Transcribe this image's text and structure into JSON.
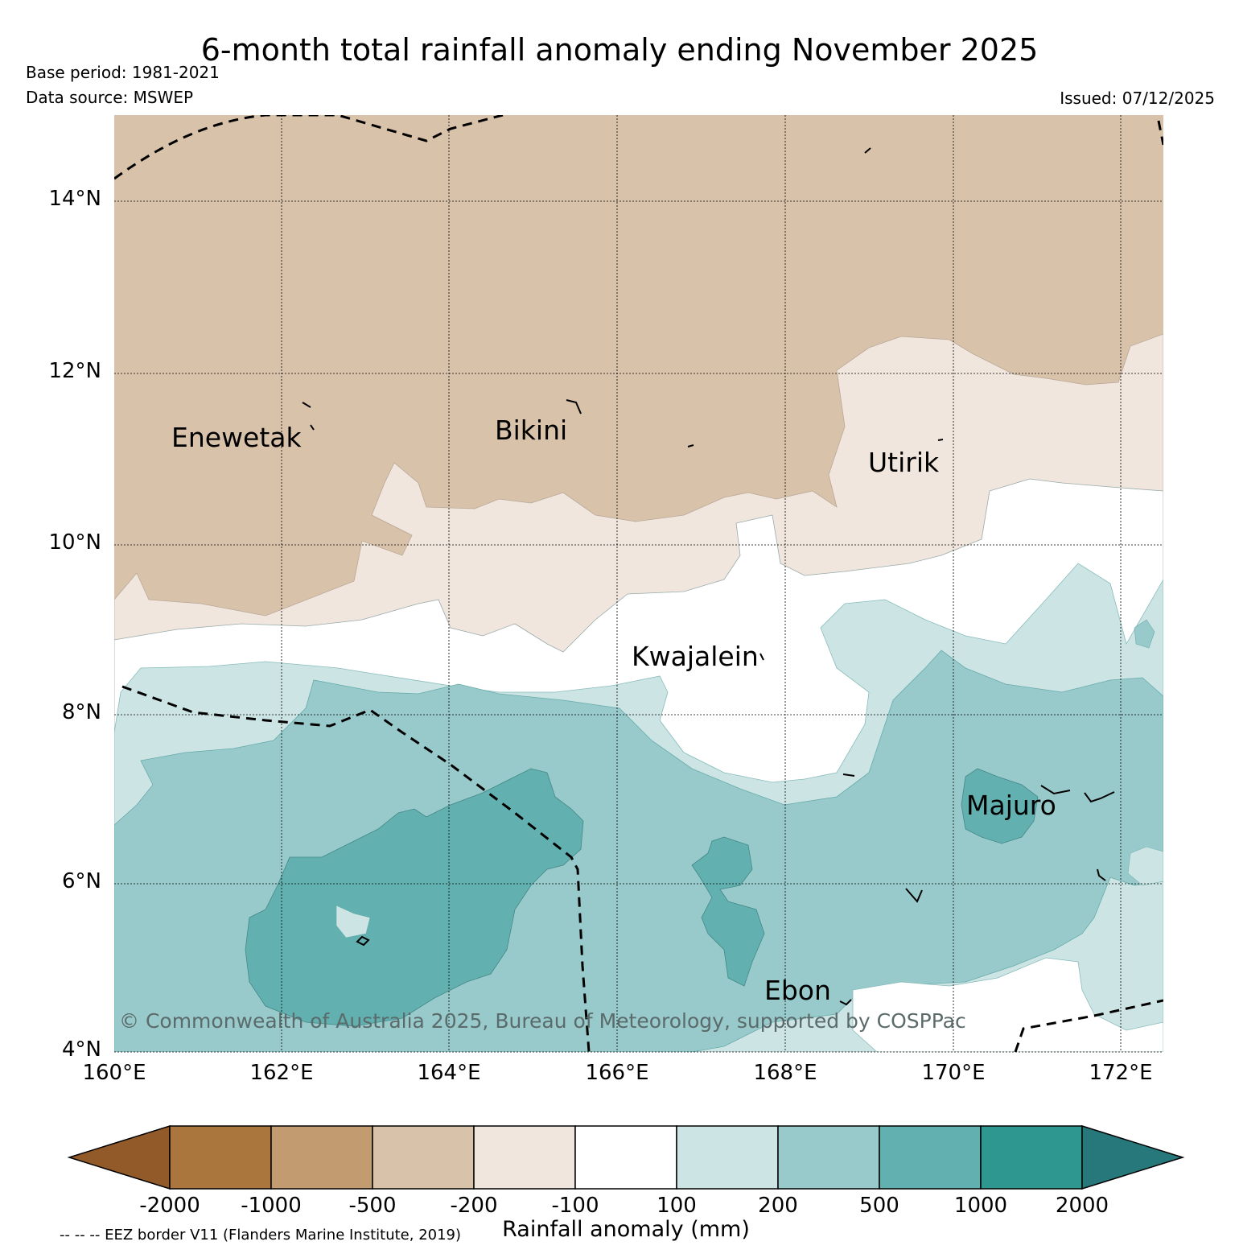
{
  "title": "6-month total rainfall anomaly ending November 2025",
  "base_period": "Base period: 1981-2021",
  "data_source": "Data source: MSWEP",
  "issued": "Issued: 07/12/2025",
  "map": {
    "latitude_labels": [
      "14°N",
      "12°N",
      "10°N",
      "8°N",
      "6°N",
      "4°N"
    ],
    "longitude_labels": [
      "160°E",
      "162°E",
      "164°E",
      "166°E",
      "168°E",
      "170°E",
      "172°E"
    ],
    "places": [
      "Enewetak",
      "Bikini",
      "Utirik",
      "Kwajalein",
      "Majuro",
      "Ebon"
    ],
    "copyright": "© Commonwealth of Australia 2025, Bureau of Meteorology, supported by COSPPac"
  },
  "colorbar": {
    "label": "Rainfall anomaly (mm)",
    "ticks": [
      "-2000",
      "-1000",
      "-500",
      "-200",
      "-100",
      "100",
      "200",
      "500",
      "1000",
      "2000"
    ],
    "colors": [
      "#925a29",
      "#ab753e",
      "#c29b71",
      "#d9c2aa",
      "#f0e6dd",
      "#ffffff",
      "#cce5e4",
      "#99cacb",
      "#62b0b0",
      "#2e9790",
      "#26787a"
    ]
  },
  "legend_note": "-- -- -- EEZ border V11 (Flanders Marine Institute, 2019)"
}
